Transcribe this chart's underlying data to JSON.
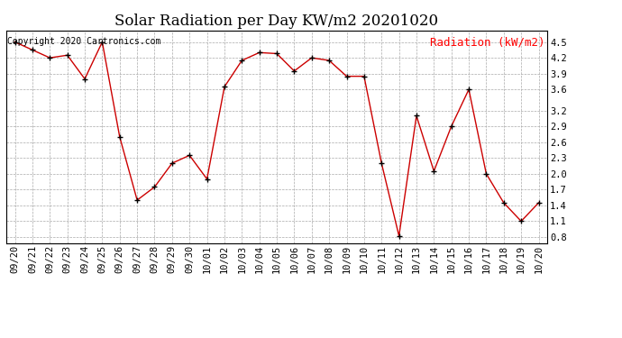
{
  "title": "Solar Radiation per Day KW/m2 20201020",
  "legend_label": "Radiation (kW/m2)",
  "copyright_text": "Copyright 2020 Cartronics.com",
  "dates": [
    "09/20",
    "09/21",
    "09/22",
    "09/23",
    "09/24",
    "09/25",
    "09/26",
    "09/27",
    "09/28",
    "09/29",
    "09/30",
    "10/01",
    "10/02",
    "10/03",
    "10/04",
    "10/05",
    "10/06",
    "10/07",
    "10/08",
    "10/09",
    "10/10",
    "10/11",
    "10/12",
    "10/13",
    "10/14",
    "10/15",
    "10/16",
    "10/17",
    "10/18",
    "10/19",
    "10/20"
  ],
  "values": [
    4.5,
    4.35,
    4.2,
    4.25,
    3.8,
    4.5,
    2.7,
    1.5,
    1.75,
    2.2,
    2.35,
    1.9,
    3.65,
    4.15,
    4.3,
    4.28,
    3.95,
    4.2,
    4.15,
    3.85,
    3.85,
    2.2,
    0.82,
    3.1,
    2.05,
    2.9,
    3.6,
    2.0,
    1.45,
    1.1,
    1.45
  ],
  "line_color": "#cc0000",
  "marker_color": "#000000",
  "grid_color": "#aaaaaa",
  "background_color": "#ffffff",
  "ylim": [
    0.68,
    4.72
  ],
  "yticks": [
    0.8,
    1.1,
    1.4,
    1.7,
    2.0,
    2.3,
    2.6,
    2.9,
    3.2,
    3.6,
    3.9,
    4.2,
    4.5
  ],
  "title_fontsize": 12,
  "legend_fontsize": 9,
  "copyright_fontsize": 7,
  "tick_fontsize": 7.5
}
